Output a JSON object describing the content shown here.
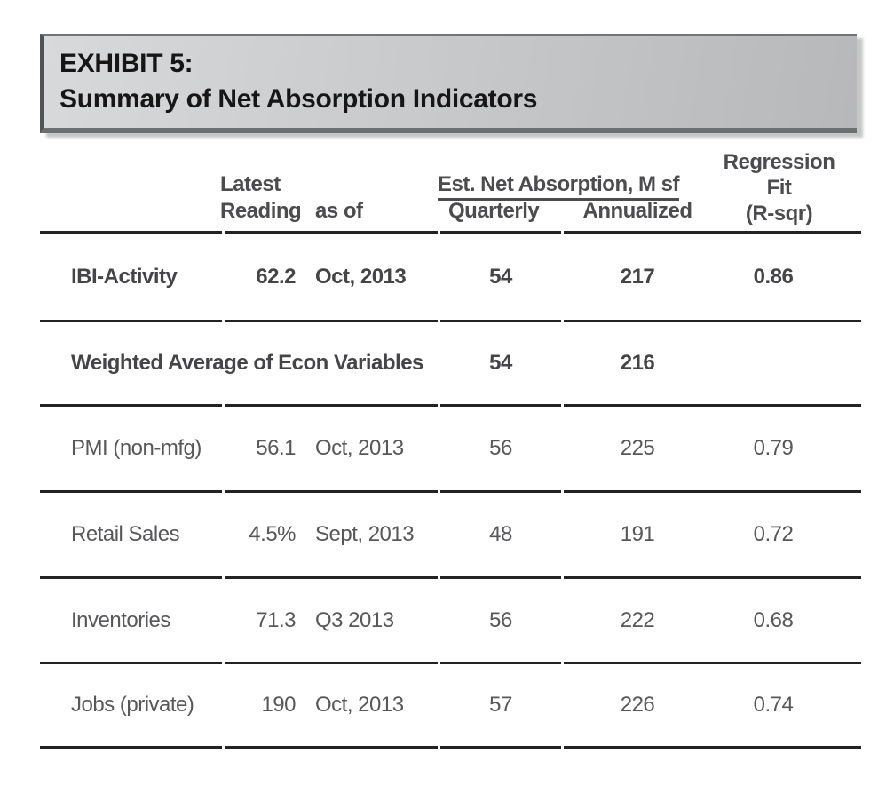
{
  "title": {
    "line1": "EXHIBIT 5:",
    "line2": "Summary of Net Absorption Indicators"
  },
  "table": {
    "headers": {
      "latest_line1": "Latest",
      "latest_line2": "Reading",
      "as_of": "as of",
      "est_net_absorption": "Est. Net Absorption, M sf",
      "quarterly": "Quarterly",
      "annualized": "Annualized",
      "regression_line1": "Regression",
      "regression_line2": "Fit",
      "regression_line3": "(R-sqr)"
    },
    "rows": [
      {
        "label": "IBI-Activity",
        "latest_reading": "62.2",
        "as_of": "Oct, 2013",
        "quarterly": "54",
        "annualized": "217",
        "r_sqr": "0.86"
      },
      {
        "label": "Weighted Average of Econ Variables",
        "latest_reading": "",
        "as_of": "",
        "quarterly": "54",
        "annualized": "216",
        "r_sqr": ""
      },
      {
        "label": "PMI (non-mfg)",
        "latest_reading": "56.1",
        "as_of": "Oct, 2013",
        "quarterly": "56",
        "annualized": "225",
        "r_sqr": "0.79"
      },
      {
        "label": "Retail Sales",
        "latest_reading": "4.5%",
        "as_of": "Sept, 2013",
        "quarterly": "48",
        "annualized": "191",
        "r_sqr": "0.72"
      },
      {
        "label": "Inventories",
        "latest_reading": "71.3",
        "as_of": "Q3 2013",
        "quarterly": "56",
        "annualized": "222",
        "r_sqr": "0.68"
      },
      {
        "label": "Jobs (private)",
        "latest_reading": "190",
        "as_of": "Oct, 2013",
        "quarterly": "57",
        "annualized": "226",
        "r_sqr": "0.74"
      }
    ]
  },
  "colors": {
    "rule": "#232323",
    "bold_row_text": "#454547",
    "regular_row_text": "#58585a",
    "header_text": "#4c4c4e",
    "title_text": "#161616",
    "title_gradient_start": "#d8d9db",
    "title_gradient_end": "#b7b8ba",
    "title_bottom_strip": "#6e6f71"
  }
}
